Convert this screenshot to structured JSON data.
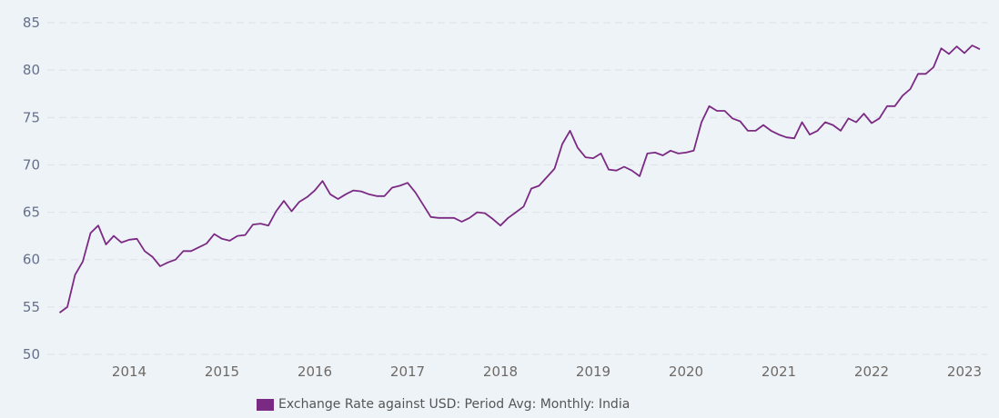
{
  "chart_data": {
    "type": "line",
    "title": "",
    "xlabel": "",
    "ylabel": "",
    "ylim": [
      50,
      85
    ],
    "yticks": [
      50,
      55,
      60,
      65,
      70,
      75,
      80,
      85
    ],
    "xticks": [
      "2014",
      "2015",
      "2016",
      "2017",
      "2018",
      "2019",
      "2020",
      "2021",
      "2022",
      "2023"
    ],
    "grid": true,
    "legend_position": "bottom",
    "start_month": "2013-04",
    "series": [
      {
        "name": "Exchange Rate against USD: Period Avg: Monthly: India",
        "color": "#7b2a83",
        "values": [
          54.4,
          55.0,
          58.4,
          59.8,
          62.8,
          63.6,
          61.6,
          62.5,
          61.8,
          62.1,
          62.2,
          60.9,
          60.3,
          59.3,
          59.7,
          60.0,
          60.9,
          60.9,
          61.3,
          61.7,
          62.7,
          62.2,
          62.0,
          62.5,
          62.6,
          63.7,
          63.8,
          63.6,
          65.1,
          66.2,
          65.1,
          66.1,
          66.6,
          67.3,
          68.3,
          66.9,
          66.4,
          66.9,
          67.3,
          67.2,
          66.9,
          66.7,
          66.7,
          67.6,
          67.8,
          68.1,
          67.1,
          65.8,
          64.5,
          64.4,
          64.4,
          64.4,
          64.0,
          64.4,
          65.0,
          64.9,
          64.3,
          63.6,
          64.4,
          65.0,
          65.6,
          67.5,
          67.8,
          68.7,
          69.6,
          72.2,
          73.6,
          71.8,
          70.8,
          70.7,
          71.2,
          69.5,
          69.4,
          69.8,
          69.4,
          68.8,
          71.2,
          71.3,
          71.0,
          71.5,
          71.2,
          71.3,
          71.5,
          74.5,
          76.2,
          75.7,
          75.7,
          74.9,
          74.6,
          73.6,
          73.6,
          74.2,
          73.6,
          73.2,
          72.9,
          72.8,
          74.5,
          73.2,
          73.6,
          74.5,
          74.2,
          73.6,
          74.9,
          74.5,
          75.4,
          74.4,
          74.9,
          76.2,
          76.2,
          77.3,
          78.0,
          79.6,
          79.6,
          80.3,
          82.3,
          81.7,
          82.5,
          81.8,
          82.6,
          82.2
        ]
      }
    ]
  }
}
